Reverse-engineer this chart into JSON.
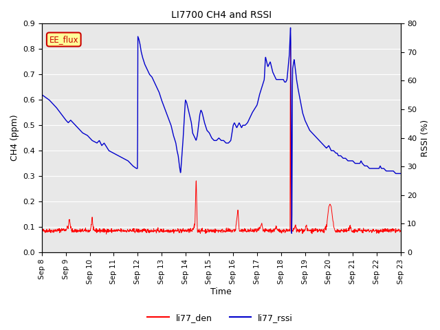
{
  "title": "LI7700 CH4 and RSSI",
  "xlabel": "Time",
  "ylabel_left": "CH4 (ppm)",
  "ylabel_right": "RSSI (%)",
  "ylim_left": [
    0.0,
    0.9
  ],
  "ylim_right": [
    0,
    80
  ],
  "yticks_left": [
    0.0,
    0.1,
    0.2,
    0.3,
    0.4,
    0.5,
    0.6,
    0.7,
    0.8,
    0.9
  ],
  "yticks_right": [
    0,
    10,
    20,
    30,
    40,
    50,
    60,
    70,
    80
  ],
  "color_ch4": "#ff0000",
  "color_rssi": "#0000cc",
  "annotation_text": "EE_flux",
  "annotation_color": "#cc0000",
  "annotation_bg": "#ffff99",
  "background_color": "#e8e8e8",
  "grid_color": "#ffffff"
}
